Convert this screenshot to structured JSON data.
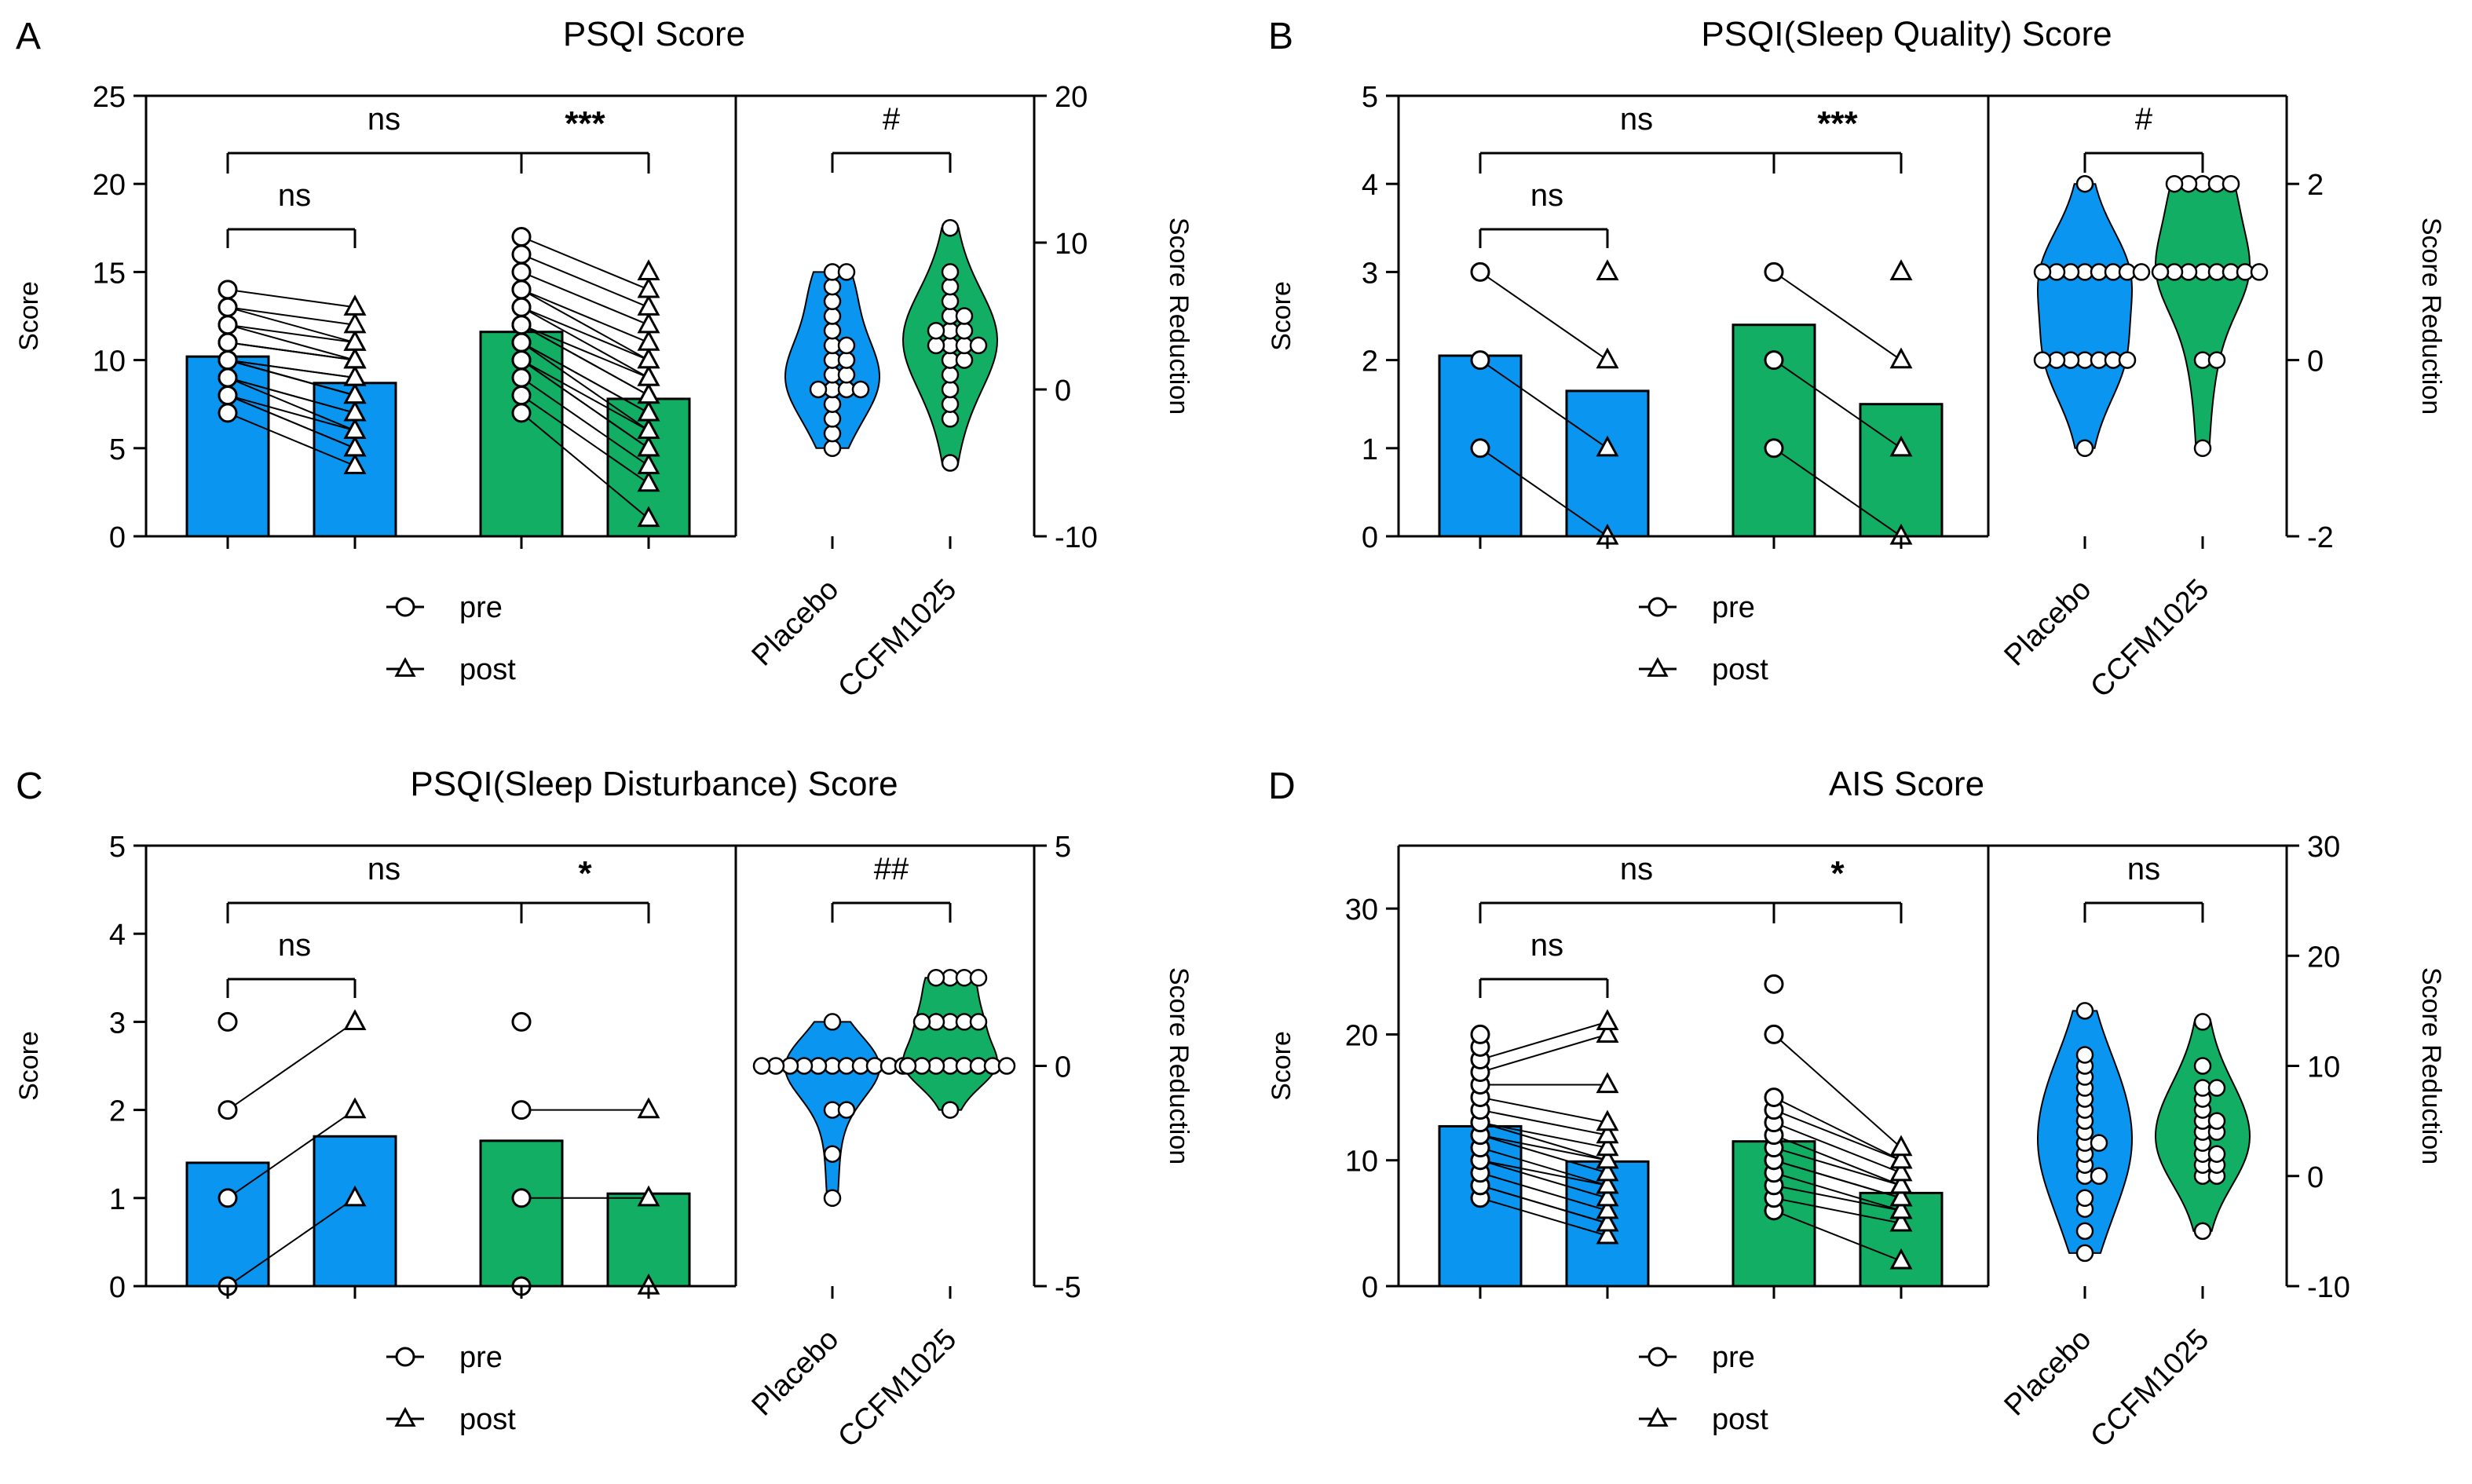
{
  "colors": {
    "placebo": "#0A96F0",
    "ccfm": "#12AE64",
    "line": "#000000"
  },
  "legend": {
    "pre": "pre",
    "post": "post"
  },
  "chart_data": [
    {
      "panel": "A",
      "title": "PSQI Score",
      "type": "bar",
      "ylabel": "Score",
      "ylim": [
        0,
        25
      ],
      "yticks": [
        0,
        5,
        10,
        15,
        20,
        25
      ],
      "bars": {
        "placebo_pre": 10.2,
        "placebo_post": 8.7,
        "ccfm_pre": 11.6,
        "ccfm_post": 7.8
      },
      "placebo_pre": [
        7,
        8,
        8,
        8,
        9,
        9,
        9,
        10,
        10,
        10,
        10,
        10,
        11,
        11,
        11,
        12,
        12,
        13,
        13,
        14
      ],
      "placebo_post": [
        4,
        5,
        5,
        6,
        6,
        7,
        7,
        8,
        8,
        8,
        9,
        9,
        10,
        10,
        10,
        10,
        11,
        11,
        12,
        13
      ],
      "ccfm_pre": [
        7,
        8,
        9,
        10,
        10,
        10,
        11,
        11,
        11,
        12,
        12,
        12,
        13,
        13,
        14,
        14,
        15,
        16,
        17
      ],
      "ccfm_post": [
        1,
        3,
        4,
        5,
        5,
        6,
        6,
        7,
        7,
        8,
        8,
        9,
        9,
        10,
        10,
        11,
        12,
        13,
        14,
        15
      ],
      "sig_main": [
        "ns",
        "***"
      ],
      "sig_sub": "ns",
      "violin": {
        "ylabel": "Score Reduction",
        "ylim": [
          -10,
          20
        ],
        "yticks": [
          -10,
          0,
          10,
          20
        ],
        "categories": [
          "Placebo",
          "CCFM1025"
        ],
        "sig": "#",
        "placebo": [
          -4,
          -3,
          -2,
          -1,
          0,
          0,
          0,
          0,
          1,
          1,
          2,
          2,
          3,
          3,
          4,
          5,
          6,
          7,
          8,
          8
        ],
        "ccfm": [
          -5,
          -2,
          -1,
          0,
          1,
          2,
          2,
          3,
          3,
          3,
          3,
          4,
          4,
          4,
          5,
          5,
          6,
          7,
          8,
          11
        ]
      }
    },
    {
      "panel": "B",
      "title": "PSQI(Sleep Quality) Score",
      "type": "bar",
      "ylabel": "Score",
      "ylim": [
        0,
        5
      ],
      "yticks": [
        0,
        1,
        2,
        3,
        4,
        5
      ],
      "bars": {
        "placebo_pre": 2.05,
        "placebo_post": 1.65,
        "ccfm_pre": 2.4,
        "ccfm_post": 1.5
      },
      "placebo_pre": [
        1,
        2,
        3
      ],
      "placebo_post": [
        0,
        1,
        2,
        3
      ],
      "ccfm_pre": [
        1,
        2,
        3
      ],
      "ccfm_post": [
        0,
        1,
        2,
        3
      ],
      "sig_main": [
        "ns",
        "***"
      ],
      "sig_sub": "ns",
      "violin": {
        "ylabel": "Score Reduction",
        "ylim": [
          -2,
          3
        ],
        "yticks": [
          -2,
          0,
          2
        ],
        "categories": [
          "Placebo",
          "CCFM1025"
        ],
        "sig": "#",
        "placebo": [
          -1,
          0,
          0,
          0,
          0,
          0,
          0,
          0,
          1,
          1,
          1,
          1,
          1,
          1,
          1,
          1,
          2
        ],
        "ccfm": [
          -1,
          0,
          0,
          1,
          1,
          1,
          1,
          1,
          1,
          1,
          1,
          2,
          2,
          2,
          2,
          2
        ]
      }
    },
    {
      "panel": "C",
      "title": "PSQI(Sleep Disturbance) Score",
      "type": "bar",
      "ylabel": "Score",
      "ylim": [
        0,
        5
      ],
      "yticks": [
        0,
        1,
        2,
        3,
        4,
        5
      ],
      "bars": {
        "placebo_pre": 1.4,
        "placebo_post": 1.7,
        "ccfm_pre": 1.65,
        "ccfm_post": 1.05
      },
      "placebo_pre": [
        0,
        1,
        2,
        3
      ],
      "placebo_post": [
        1,
        2,
        3
      ],
      "ccfm_pre": [
        0,
        1,
        2,
        3
      ],
      "ccfm_post": [
        0,
        1,
        2
      ],
      "sig_main": [
        "ns",
        "*"
      ],
      "sig_sub": "ns",
      "violin": {
        "ylabel": "Score Reduction",
        "ylim": [
          -5,
          5
        ],
        "yticks": [
          -5,
          0,
          5
        ],
        "categories": [
          "Placebo",
          "CCFM1025"
        ],
        "sig": "##",
        "placebo": [
          -3,
          -2,
          -1,
          -1,
          0,
          0,
          0,
          0,
          0,
          0,
          0,
          0,
          0,
          0,
          0,
          1
        ],
        "ccfm": [
          -1,
          0,
          0,
          0,
          0,
          0,
          0,
          0,
          0,
          1,
          1,
          1,
          1,
          1,
          2,
          2,
          2,
          2
        ]
      }
    },
    {
      "panel": "D",
      "title": "AIS Score",
      "type": "bar",
      "ylabel": "Score",
      "ylim": [
        0,
        35
      ],
      "yticks": [
        0,
        10,
        20,
        30
      ],
      "bars": {
        "placebo_pre": 12.7,
        "placebo_post": 9.9,
        "ccfm_pre": 11.5,
        "ccfm_post": 7.4
      },
      "placebo_pre": [
        7,
        8,
        8,
        9,
        10,
        10,
        11,
        12,
        12,
        13,
        13,
        14,
        15,
        16,
        17,
        18,
        19,
        20
      ],
      "placebo_post": [
        4,
        5,
        5,
        6,
        7,
        8,
        8,
        9,
        10,
        10,
        11,
        12,
        13,
        16,
        20,
        21
      ],
      "ccfm_pre": [
        6,
        7,
        8,
        9,
        10,
        10,
        11,
        12,
        13,
        14,
        15,
        20,
        24
      ],
      "ccfm_post": [
        2,
        5,
        6,
        6,
        7,
        7,
        8,
        8,
        9,
        10,
        10,
        11
      ],
      "sig_main": [
        "ns",
        "*"
      ],
      "sig_sub": "ns",
      "violin": {
        "ylabel": "Score Reduction",
        "ylim": [
          -10,
          30
        ],
        "yticks": [
          -10,
          0,
          10,
          20,
          30
        ],
        "categories": [
          "Placebo",
          "CCFM1025"
        ],
        "sig": "ns",
        "placebo": [
          -7,
          -5,
          -3,
          -2,
          0,
          0,
          1,
          2,
          3,
          3,
          4,
          5,
          6,
          7,
          8,
          9,
          10,
          11,
          15
        ],
        "ccfm": [
          -5,
          0,
          0,
          1,
          1,
          2,
          2,
          3,
          4,
          4,
          5,
          5,
          6,
          7,
          8,
          8,
          10,
          14
        ]
      }
    }
  ]
}
